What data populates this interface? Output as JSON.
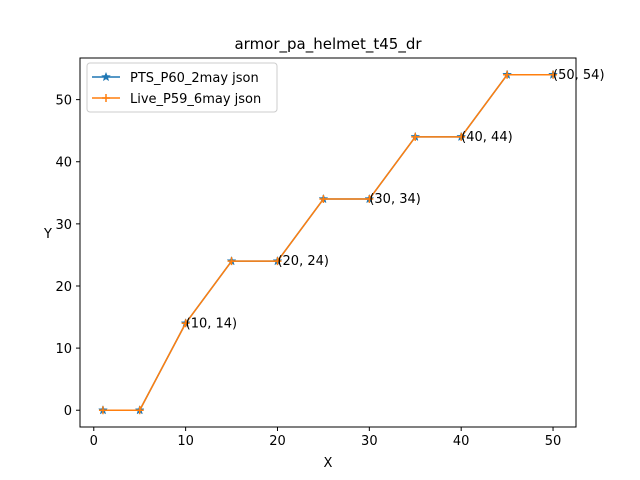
{
  "chart_data": {
    "type": "line",
    "title": "armor_pa_helmet_t45_dr",
    "xlabel": "X",
    "ylabel": "Y",
    "xlim": [
      -1.5,
      52.5
    ],
    "ylim": [
      -2.7,
      56.7
    ],
    "xticks": [
      0,
      10,
      20,
      30,
      40,
      50
    ],
    "yticks": [
      0,
      10,
      20,
      30,
      40,
      50
    ],
    "grid": false,
    "legend_position": "top-left",
    "series": [
      {
        "name": "PTS_P60_2may json",
        "color": "#1f77b4",
        "marker": "star",
        "x": [
          1,
          5,
          10,
          15,
          20,
          25,
          30,
          35,
          40,
          45,
          50
        ],
        "y": [
          0,
          0,
          14,
          24,
          24,
          34,
          34,
          44,
          44,
          54,
          54
        ]
      },
      {
        "name": "Live_P59_6may json",
        "color": "#ff7f0e",
        "marker": "plus",
        "x": [
          1,
          5,
          10,
          15,
          20,
          25,
          30,
          35,
          40,
          45,
          50
        ],
        "y": [
          0,
          0,
          14,
          24,
          24,
          34,
          34,
          44,
          44,
          54,
          54
        ]
      }
    ],
    "annotations": [
      {
        "x": 10,
        "y": 14,
        "text": "(10, 14)"
      },
      {
        "x": 20,
        "y": 24,
        "text": "(20, 24)"
      },
      {
        "x": 30,
        "y": 34,
        "text": "(30, 34)"
      },
      {
        "x": 40,
        "y": 44,
        "text": "(40, 44)"
      },
      {
        "x": 50,
        "y": 54,
        "text": "(50, 54)"
      }
    ]
  }
}
